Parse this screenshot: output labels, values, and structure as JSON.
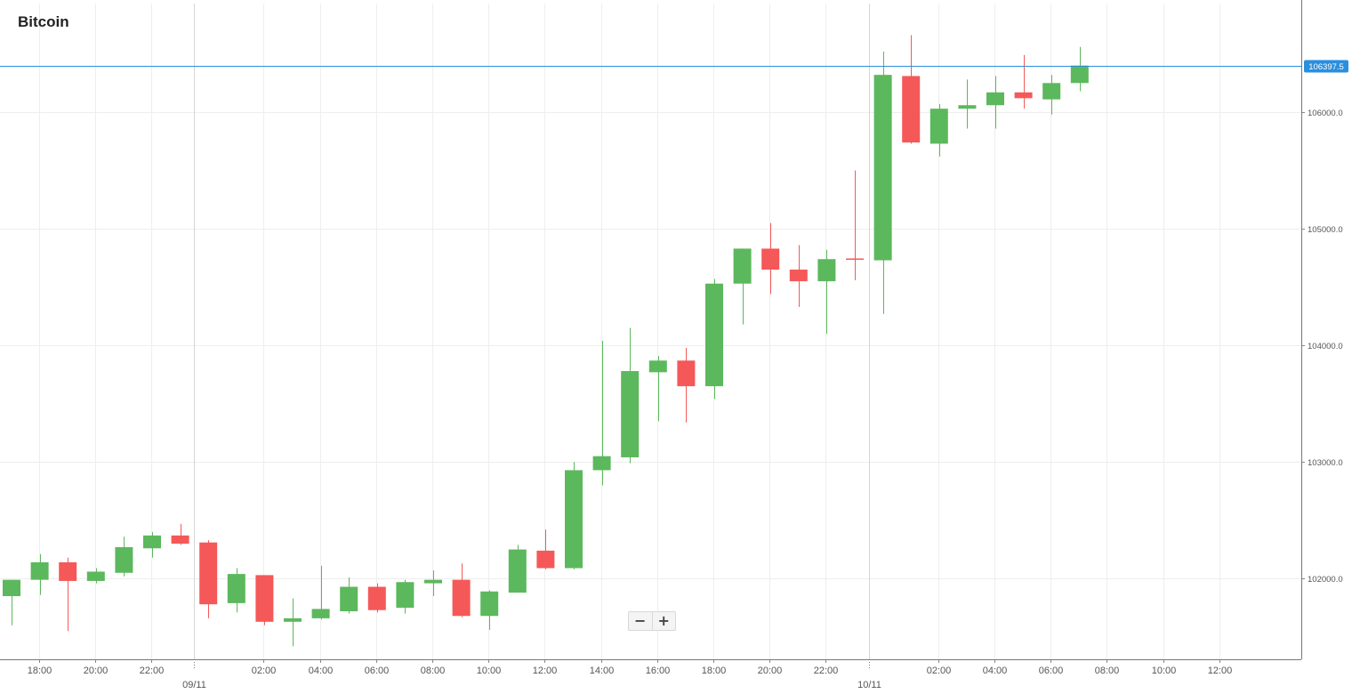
{
  "chart_data": {
    "type": "candlestick",
    "title": "Bitcoin",
    "current_price": "106397.5",
    "y_ticks": [
      "102000.0",
      "103000.0",
      "104000.0",
      "105000.0",
      "106000.0"
    ],
    "ylim": [
      101270,
      106840
    ],
    "x_tick_labels": [
      "18:00",
      "20:00",
      "22:00",
      "02:00",
      "04:00",
      "06:00",
      "08:00",
      "10:00",
      "12:00",
      "14:00",
      "16:00",
      "18:00",
      "20:00",
      "22:00",
      "02:00",
      "04:00",
      "06:00",
      "08:00",
      "10:00",
      "12:00"
    ],
    "date_labels": [
      "09/11",
      "10/11"
    ],
    "colors": {
      "up": "#5cb85c",
      "down": "#f55858",
      "price_line": "#2a8fdc",
      "grid": "#eeeeee",
      "day_divider": "#d6d6d6"
    },
    "candles": [
      {
        "time": "09/11 17:00",
        "open": 101850,
        "high": 101990,
        "low": 101600,
        "close": 101990
      },
      {
        "time": "09/11 18:00",
        "open": 101990,
        "high": 102210,
        "low": 101860,
        "close": 102140
      },
      {
        "time": "09/11 19:00",
        "open": 102140,
        "high": 102180,
        "low": 101550,
        "close": 101980
      },
      {
        "time": "09/11 20:00",
        "open": 101980,
        "high": 102090,
        "low": 101960,
        "close": 102060
      },
      {
        "time": "09/11 21:00",
        "open": 102050,
        "high": 102360,
        "low": 102020,
        "close": 102270
      },
      {
        "time": "09/11 22:00",
        "open": 102260,
        "high": 102400,
        "low": 102180,
        "close": 102370
      },
      {
        "time": "09/11 23:00",
        "open": 102370,
        "high": 102470,
        "low": 102290,
        "close": 102300
      },
      {
        "time": "10/11 00:00",
        "open": 102310,
        "high": 102330,
        "low": 101660,
        "close": 101780
      },
      {
        "time": "10/11 01:00",
        "open": 101790,
        "high": 102090,
        "low": 101710,
        "close": 102040
      },
      {
        "time": "10/11 02:00",
        "open": 102030,
        "high": 102030,
        "low": 101600,
        "close": 101630
      },
      {
        "time": "10/11 03:00",
        "open": 101630,
        "high": 101830,
        "low": 101420,
        "close": 101660
      },
      {
        "time": "10/11 04:00",
        "open": 101660,
        "high": 102110,
        "low": 101650,
        "close": 101740
      },
      {
        "time": "10/11 05:00",
        "open": 101720,
        "high": 102010,
        "low": 101700,
        "close": 101930
      },
      {
        "time": "10/11 06:00",
        "open": 101930,
        "high": 101960,
        "low": 101710,
        "close": 101730
      },
      {
        "time": "10/11 07:00",
        "open": 101750,
        "high": 101990,
        "low": 101700,
        "close": 101970
      },
      {
        "time": "10/11 08:00",
        "open": 101960,
        "high": 102070,
        "low": 101850,
        "close": 101990
      },
      {
        "time": "10/11 09:00",
        "open": 101990,
        "high": 102130,
        "low": 101670,
        "close": 101680
      },
      {
        "time": "10/11 10:00",
        "open": 101680,
        "high": 101900,
        "low": 101560,
        "close": 101890
      },
      {
        "time": "10/11 11:00",
        "open": 101880,
        "high": 102290,
        "low": 101880,
        "close": 102250
      },
      {
        "time": "10/11 12:00",
        "open": 102240,
        "high": 102420,
        "low": 102080,
        "close": 102090
      },
      {
        "time": "10/11 13:00",
        "open": 102090,
        "high": 103000,
        "low": 102080,
        "close": 102930
      },
      {
        "time": "10/11 14:00",
        "open": 102930,
        "high": 104040,
        "low": 102800,
        "close": 103050
      },
      {
        "time": "10/11 15:00",
        "open": 103040,
        "high": 104150,
        "low": 102990,
        "close": 103780
      },
      {
        "time": "10/11 16:00",
        "open": 103770,
        "high": 103910,
        "low": 103350,
        "close": 103870
      },
      {
        "time": "10/11 17:00",
        "open": 103870,
        "high": 103980,
        "low": 103340,
        "close": 103650
      },
      {
        "time": "10/11 18:00",
        "open": 103650,
        "high": 104570,
        "low": 103540,
        "close": 104530
      },
      {
        "time": "10/11 19:00",
        "open": 104530,
        "high": 104830,
        "low": 104180,
        "close": 104830
      },
      {
        "time": "10/11 20:00",
        "open": 104830,
        "high": 105050,
        "low": 104440,
        "close": 104650
      },
      {
        "time": "10/11 21:00",
        "open": 104650,
        "high": 104860,
        "low": 104330,
        "close": 104550
      },
      {
        "time": "10/11 22:00",
        "open": 104550,
        "high": 104820,
        "low": 104100,
        "close": 104740
      },
      {
        "time": "10/11 23:00",
        "open": 104740,
        "high": 105500,
        "low": 104560,
        "close": 104730
      },
      {
        "time": "11/11 00:00",
        "open": 104730,
        "high": 106520,
        "low": 104270,
        "close": 106320
      },
      {
        "time": "11/11 01:00",
        "open": 106310,
        "high": 106660,
        "low": 105730,
        "close": 105740
      },
      {
        "time": "11/11 02:00",
        "open": 105730,
        "high": 106070,
        "low": 105620,
        "close": 106030
      },
      {
        "time": "11/11 03:00",
        "open": 106030,
        "high": 106280,
        "low": 105860,
        "close": 106060
      },
      {
        "time": "11/11 04:00",
        "open": 106060,
        "high": 106310,
        "low": 105860,
        "close": 106170
      },
      {
        "time": "11/11 05:00",
        "open": 106170,
        "high": 106490,
        "low": 106030,
        "close": 106120
      },
      {
        "time": "11/11 06:00",
        "open": 106110,
        "high": 106320,
        "low": 105980,
        "close": 106250
      },
      {
        "time": "11/11 07:00",
        "open": 106250,
        "high": 106560,
        "low": 106180,
        "close": 106400
      }
    ]
  }
}
